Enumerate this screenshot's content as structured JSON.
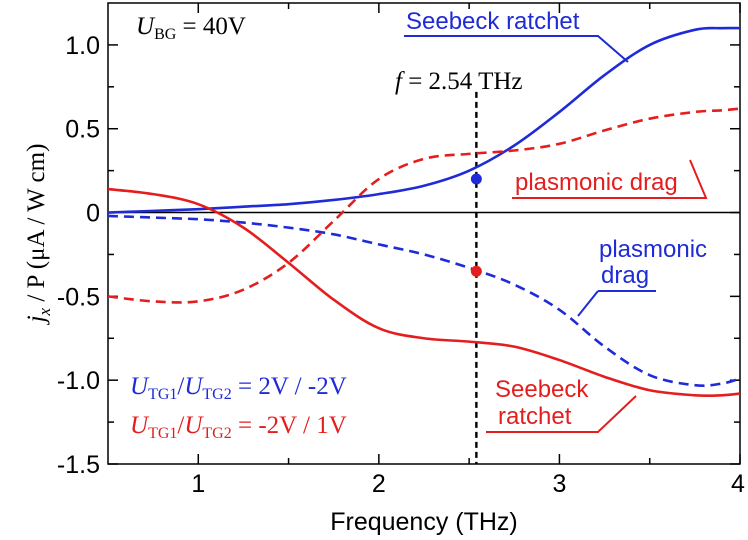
{
  "chart_data": {
    "type": "line",
    "xlabel": "Frequency (THz)",
    "ylabel": {
      "j": "j",
      "x": "x",
      "rest": " / P (μA / W cm)"
    },
    "xlim": [
      0.5,
      4.0
    ],
    "ylim": [
      -1.5,
      1.25
    ],
    "xticks": [
      {
        "value": 1,
        "label": "1"
      },
      {
        "value": 2,
        "label": "2"
      },
      {
        "value": 3,
        "label": "3"
      },
      {
        "value": 4,
        "label": "4"
      }
    ],
    "xminor": [
      1.5,
      2.5,
      3.5
    ],
    "yticks": [
      {
        "value": 1.0,
        "label": "1.0"
      },
      {
        "value": 0.5,
        "label": "0.5"
      },
      {
        "value": 0.0,
        "label": "0"
      },
      {
        "value": -0.5,
        "label": "-0.5"
      },
      {
        "value": -1.0,
        "label": "-1.0"
      },
      {
        "value": -1.5,
        "label": "-1.5"
      }
    ],
    "yminor": [
      0.25,
      0.75,
      -0.25,
      -0.75,
      -1.25
    ],
    "series": [
      {
        "name": "Seebeck ratchet (blue)",
        "color": "#1f2bd6",
        "dash": false,
        "x": [
          0.5,
          0.75,
          1.0,
          1.25,
          1.5,
          1.75,
          2.0,
          2.25,
          2.5,
          2.75,
          3.0,
          3.25,
          3.5,
          3.75,
          3.9,
          4.0
        ],
        "y": [
          0.0,
          0.01,
          0.02,
          0.035,
          0.05,
          0.075,
          0.11,
          0.16,
          0.25,
          0.4,
          0.6,
          0.82,
          1.0,
          1.09,
          1.1,
          1.1
        ]
      },
      {
        "name": "plasmonic drag (blue)",
        "color": "#1f2bd6",
        "dash": true,
        "x": [
          0.5,
          0.75,
          1.0,
          1.25,
          1.5,
          1.75,
          2.0,
          2.25,
          2.5,
          2.75,
          3.0,
          3.25,
          3.5,
          3.75,
          3.9,
          4.0
        ],
        "y": [
          -0.02,
          -0.03,
          -0.04,
          -0.06,
          -0.09,
          -0.13,
          -0.19,
          -0.25,
          -0.33,
          -0.43,
          -0.58,
          -0.8,
          -0.97,
          -1.03,
          -1.02,
          -0.99
        ]
      },
      {
        "name": "Seebeck ratchet (red)",
        "color": "#e41e1e",
        "dash": false,
        "x": [
          0.5,
          0.75,
          1.0,
          1.25,
          1.5,
          1.75,
          2.0,
          2.25,
          2.5,
          2.75,
          3.0,
          3.25,
          3.5,
          3.75,
          3.9,
          4.0
        ],
        "y": [
          0.14,
          0.11,
          0.05,
          -0.09,
          -0.3,
          -0.52,
          -0.69,
          -0.75,
          -0.77,
          -0.8,
          -0.88,
          -0.98,
          -1.06,
          -1.09,
          -1.09,
          -1.08
        ]
      },
      {
        "name": "plasmonic drag (red)",
        "color": "#e41e1e",
        "dash": true,
        "x": [
          0.5,
          0.75,
          1.0,
          1.25,
          1.5,
          1.75,
          2.0,
          2.25,
          2.5,
          2.75,
          3.0,
          3.25,
          3.5,
          3.75,
          3.9,
          4.0
        ],
        "y": [
          -0.5,
          -0.53,
          -0.53,
          -0.46,
          -0.3,
          -0.05,
          0.2,
          0.32,
          0.35,
          0.37,
          0.41,
          0.49,
          0.56,
          0.6,
          0.61,
          0.62
        ]
      }
    ],
    "markers": [
      {
        "x": 2.54,
        "y": 0.2,
        "color": "#1f2bd6"
      },
      {
        "x": 2.54,
        "y": -0.35,
        "color": "#e41e1e"
      }
    ],
    "vline": {
      "x": 2.54,
      "ymin": -1.5,
      "ymax": 0.72
    },
    "annotations": {
      "ubg_label": {
        "main": "U",
        "sub": "BG",
        "rest": " = 40V"
      },
      "freq_label": {
        "f": "f",
        "rest": " = 2.54 THz"
      },
      "seebeck_blue": "Seebeck ratchet",
      "plasmonic_red": "plasmonic drag",
      "plasmonic_blue": [
        "plasmonic",
        "drag"
      ],
      "seebeck_red": [
        "Seebeck",
        "ratchet"
      ],
      "legend_blue": {
        "u": "U",
        "sub1": "TG1",
        "slash": "/",
        "sub2": "TG2",
        "rest": " = 2V / -2V",
        "color": "#1f2bd6"
      },
      "legend_red": {
        "u": "U",
        "sub1": "TG1",
        "slash": "/",
        "sub2": "TG2",
        "rest": " = -2V / 1V",
        "color": "#e41e1e"
      }
    }
  }
}
